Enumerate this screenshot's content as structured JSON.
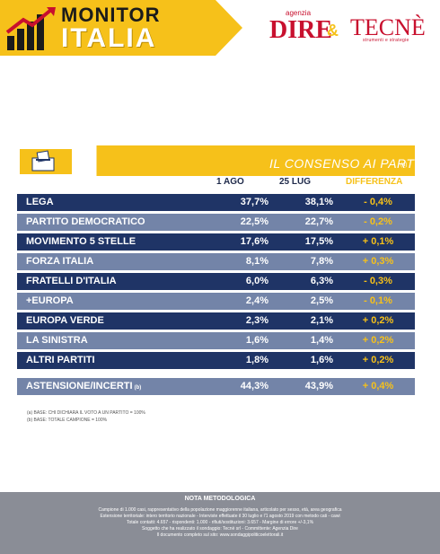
{
  "header": {
    "brand_top": "MONITOR",
    "brand_bottom": "ITALIA",
    "dire_agenzia": "agenzia",
    "dire": "DIRE",
    "amp": "&",
    "tecne": "TECNÈ",
    "tecne_sub": "strumenti e strategie"
  },
  "table": {
    "title": "IL CONSENSO AI PARTITI",
    "title_sup": "(a)",
    "columns": [
      "1 AGO",
      "25 LUG",
      "DIFFERENZA"
    ],
    "rows": [
      {
        "name": "LEGA",
        "v1": "37,7%",
        "v2": "38,1%",
        "diff": "- 0,4%"
      },
      {
        "name": "PARTITO DEMOCRATICO",
        "v1": "22,5%",
        "v2": "22,7%",
        "diff": "- 0,2%"
      },
      {
        "name": "MOVIMENTO 5 STELLE",
        "v1": "17,6%",
        "v2": "17,5%",
        "diff": "+ 0,1%"
      },
      {
        "name": "FORZA ITALIA",
        "v1": "8,1%",
        "v2": "7,8%",
        "diff": "+ 0,3%"
      },
      {
        "name": "FRATELLI D'ITALIA",
        "v1": "6,0%",
        "v2": "6,3%",
        "diff": "- 0,3%"
      },
      {
        "name": "+EUROPA",
        "v1": "2,4%",
        "v2": "2,5%",
        "diff": "- 0,1%"
      },
      {
        "name": "EUROPA VERDE",
        "v1": "2,3%",
        "v2": "2,1%",
        "diff": "+ 0,2%"
      },
      {
        "name": "LA SINISTRA",
        "v1": "1,6%",
        "v2": "1,4%",
        "diff": "+ 0,2%"
      },
      {
        "name": "ALTRI PARTITI",
        "v1": "1,8%",
        "v2": "1,6%",
        "diff": "+ 0,2%"
      }
    ],
    "astensione": {
      "name": "ASTENSIONE/INCERTI",
      "sup": "(b)",
      "v1": "44,3%",
      "v2": "43,9%",
      "diff": "+ 0,4%"
    }
  },
  "footnotes": [
    "(a)   BASE: CHI DICHIARA IL VOTO A UN PARTITO = 100%",
    "(b)   BASE: TOTALE CAMPIONE = 100%"
  ],
  "nota": {
    "title": "NOTA METODOLOGICA",
    "lines": [
      "Campione di 1.000 casi, rappresentativo della popolazione maggiorenne italiana, articolato per sesso, età, area geografica",
      "Estensione territoriale: intero territorio nazionale - Interviste effettuate il 30 luglio e l'1 agosto 2019 con metodo cati - cawi",
      "Totale contatti: 4.657 - rispondenti: 1.000 - rifiuti/sostituzioni: 3.657 - Margine di errore +/-3,1%",
      "Soggetto che ha realizzato il sondaggio: Tecnè srl - Committente: Agenzia Dire",
      "Il documento completo sul sito: www.sondaggipoliticoelettorali.it"
    ]
  },
  "colors": {
    "navy": "#1f3466",
    "slate": "#7384a8",
    "yellow": "#f6c11a"
  }
}
